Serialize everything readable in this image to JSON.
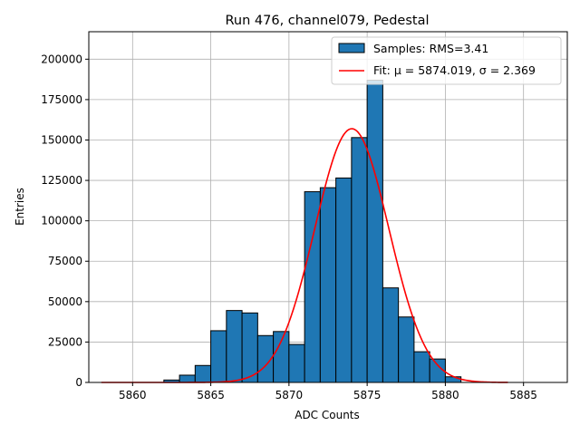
{
  "chart_data": {
    "type": "bar",
    "title": "Run 476, channel079, Pedestal",
    "xlabel": "ADC Counts",
    "ylabel": "Entries",
    "xlim": [
      5857.2,
      5887.8
    ],
    "ylim": [
      0,
      217000
    ],
    "xticks": [
      5860,
      5865,
      5870,
      5875,
      5880,
      5885
    ],
    "xtick_labels": [
      "5860",
      "5865",
      "5870",
      "5875",
      "5880",
      "5885"
    ],
    "yticks": [
      0,
      25000,
      50000,
      75000,
      100000,
      125000,
      150000,
      175000,
      200000
    ],
    "ytick_labels": [
      "0",
      "25000",
      "50000",
      "75000",
      "100000",
      "125000",
      "150000",
      "175000",
      "200000"
    ],
    "grid": true,
    "legend_position": "top-right",
    "histogram": {
      "name": "Samples: RMS=3.41",
      "color": "#1f77b4",
      "bin_width": 1,
      "bin_left_edges": [
        5862,
        5863,
        5864,
        5865,
        5866,
        5867,
        5868,
        5869,
        5870,
        5871,
        5872,
        5873,
        5874,
        5875,
        5876,
        5877,
        5878,
        5879,
        5880
      ],
      "values": [
        1500,
        4500,
        10500,
        32000,
        44500,
        43000,
        29000,
        31500,
        23500,
        118000,
        120500,
        126500,
        151500,
        187000,
        58500,
        40500,
        19000,
        14500,
        3500
      ]
    },
    "fit": {
      "name": "Fit: μ = 5874.019, σ = 2.369",
      "color": "#ff0000",
      "mu": 5874.019,
      "sigma": 2.369,
      "amplitude": 157000,
      "x_range": [
        5858,
        5884
      ]
    }
  }
}
